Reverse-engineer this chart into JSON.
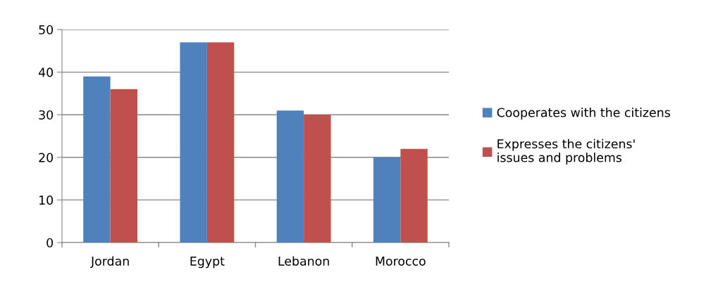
{
  "chart_data": {
    "type": "bar",
    "categories": [
      "Jordan",
      "Egypt",
      "Lebanon",
      "Morocco"
    ],
    "series": [
      {
        "name": "Cooperates with the citizens",
        "color": "#4f81bd",
        "values": [
          39,
          47,
          31,
          20
        ]
      },
      {
        "name": "Expresses the citizens'\nissues and problems",
        "color": "#c0504d",
        "values": [
          36,
          47,
          30,
          22
        ]
      }
    ],
    "ylim": [
      0,
      50
    ],
    "yticks": [
      0,
      10,
      20,
      30,
      40,
      50
    ],
    "grid": "y",
    "legend": "right"
  }
}
